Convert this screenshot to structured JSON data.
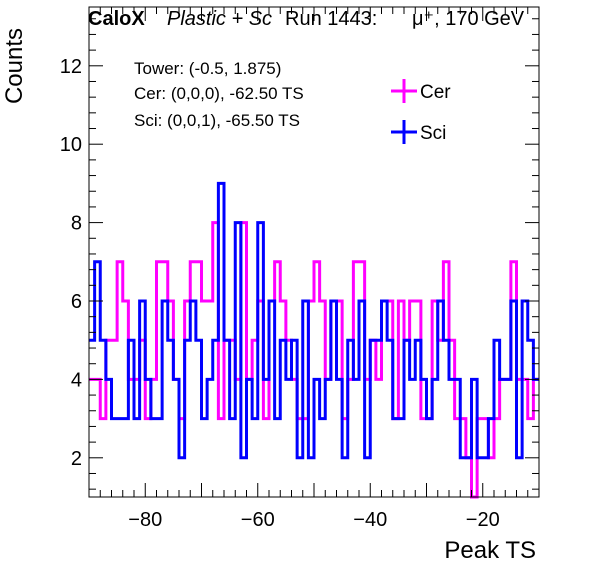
{
  "chart_data": {
    "type": "line",
    "title_parts": {
      "experiment": "CaloX",
      "detector": "Plastic + Sc",
      "run": "Run 1443:",
      "particle": "μ⁺, 170 GeV"
    },
    "xlabel": "Peak TS",
    "ylabel": "Counts",
    "xlim": [
      -90,
      -10
    ],
    "ylim": [
      1,
      13.5
    ],
    "x_ticks": [
      -80,
      -60,
      -40,
      -20
    ],
    "y_ticks": [
      2,
      4,
      6,
      8,
      10,
      12
    ],
    "info_lines": [
      "Tower: (-0.5, 1.875)",
      "Cer: (0,0,0), -62.50 TS",
      "Sci: (0,0,1), -65.50 TS"
    ],
    "legend_position": "top-right",
    "x": [
      -89.5,
      -88.5,
      -87.5,
      -86.5,
      -85.5,
      -84.5,
      -83.5,
      -82.5,
      -81.5,
      -80.5,
      -79.5,
      -78.5,
      -77.5,
      -76.5,
      -75.5,
      -74.5,
      -73.5,
      -72.5,
      -71.5,
      -70.5,
      -69.5,
      -68.5,
      -67.5,
      -66.5,
      -65.5,
      -64.5,
      -63.5,
      -62.5,
      -61.5,
      -60.5,
      -59.5,
      -58.5,
      -57.5,
      -56.5,
      -55.5,
      -54.5,
      -53.5,
      -52.5,
      -51.5,
      -50.5,
      -49.5,
      -48.5,
      -47.5,
      -46.5,
      -45.5,
      -44.5,
      -43.5,
      -42.5,
      -41.5,
      -40.5,
      -39.5,
      -38.5,
      -37.5,
      -36.5,
      -35.5,
      -34.5,
      -33.5,
      -32.5,
      -31.5,
      -30.5,
      -29.5,
      -28.5,
      -27.5,
      -26.5,
      -25.5,
      -24.5,
      -23.5,
      -22.5,
      -21.5,
      -20.5,
      -19.5,
      -18.5,
      -17.5,
      -16.5,
      -15.5,
      -14.5,
      -13.5,
      -12.5,
      -11.5,
      -10.5
    ],
    "series": [
      {
        "name": "Cer",
        "color": "#ff00ff",
        "values": [
          4,
          4,
          3,
          5,
          5,
          7,
          6,
          4,
          4,
          5,
          3,
          4,
          7,
          7,
          6,
          4,
          3,
          6,
          7,
          7,
          6,
          6,
          8,
          3,
          5,
          5,
          4,
          8,
          4,
          5,
          6,
          3,
          6,
          7,
          6,
          5,
          4,
          3,
          3,
          6,
          7,
          6,
          4,
          6,
          6,
          3,
          4,
          7,
          7,
          4,
          5,
          4,
          6,
          6,
          3,
          6,
          5,
          6,
          6,
          3,
          3,
          6,
          5,
          7,
          5,
          3,
          3,
          2,
          1,
          3,
          3,
          2,
          3,
          4,
          4,
          7,
          4,
          4,
          3,
          4
        ]
      },
      {
        "name": "Sci",
        "color": "#0000ff",
        "values": [
          5,
          7,
          5,
          4,
          3,
          3,
          3,
          5,
          3,
          6,
          4,
          3,
          3,
          6,
          5,
          4,
          2,
          5,
          6,
          5,
          3,
          4,
          5,
          9,
          5,
          3,
          8,
          2,
          4,
          3,
          8,
          4,
          6,
          3,
          5,
          4,
          5,
          2,
          6,
          2,
          4,
          3,
          4,
          6,
          4,
          2,
          5,
          4,
          6,
          2,
          5,
          5,
          6,
          5,
          3,
          3,
          5,
          4,
          5,
          4,
          3,
          4,
          6,
          5,
          4,
          4,
          2,
          2,
          4,
          2,
          2,
          3,
          5,
          4,
          4,
          6,
          2,
          6,
          5,
          4
        ]
      }
    ]
  }
}
